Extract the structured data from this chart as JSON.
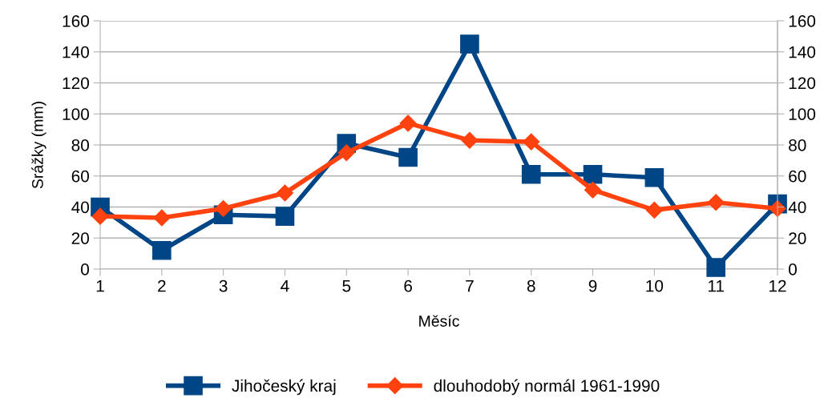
{
  "chart_data": {
    "type": "line",
    "xlabel": "Měsíc",
    "ylabel": "Srážky (mm)",
    "categories": [
      "1",
      "2",
      "3",
      "4",
      "5",
      "6",
      "7",
      "8",
      "9",
      "10",
      "11",
      "12"
    ],
    "series": [
      {
        "name": "Jihočeský kraj",
        "color": "#004586",
        "marker": "square",
        "values": [
          40,
          12,
          35,
          34,
          81,
          72,
          145,
          61,
          61,
          59,
          1,
          42
        ]
      },
      {
        "name": "dlouhodobý normál 1961-1990",
        "color": "#ff420e",
        "marker": "diamond",
        "values": [
          34,
          33,
          39,
          49,
          75,
          94,
          83,
          82,
          51,
          38,
          43,
          39
        ]
      }
    ],
    "ylim": [
      0,
      160
    ],
    "yticks": [
      0,
      20,
      40,
      60,
      80,
      100,
      120,
      140,
      160
    ],
    "y2lim": [
      0,
      160
    ],
    "y2ticks": [
      0,
      20,
      40,
      60,
      80,
      100,
      120,
      140,
      160
    ],
    "grid": "y",
    "legend": "bottom",
    "line_style": "solid"
  }
}
